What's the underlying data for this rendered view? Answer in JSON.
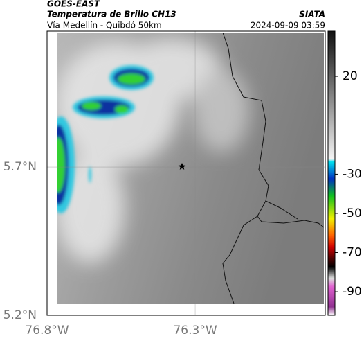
{
  "header": {
    "title": "GOES-EAST",
    "subtitle": "Temperatura de Brillo CH13",
    "source": "SIATA",
    "route": "Vía Medellín - Quibdó 50km",
    "datetime": "2024-09-09 03:59"
  },
  "map": {
    "lonlim": [
      -76.8,
      -75.861
    ],
    "latlim": [
      5.2,
      6.158
    ],
    "lonticks": [
      {
        "value": -76.8,
        "label": "76.8°W"
      },
      {
        "value": -76.3,
        "label": "76.3°W"
      }
    ],
    "latticks": [
      {
        "value": 5.7,
        "label": "5.7°N"
      },
      {
        "value": 5.2,
        "label": "5.2°N"
      }
    ]
  },
  "colorbar": {
    "lim": [
      -102,
      43
    ],
    "ticks": [
      20,
      -30,
      -50,
      -70,
      -90
    ]
  }
}
